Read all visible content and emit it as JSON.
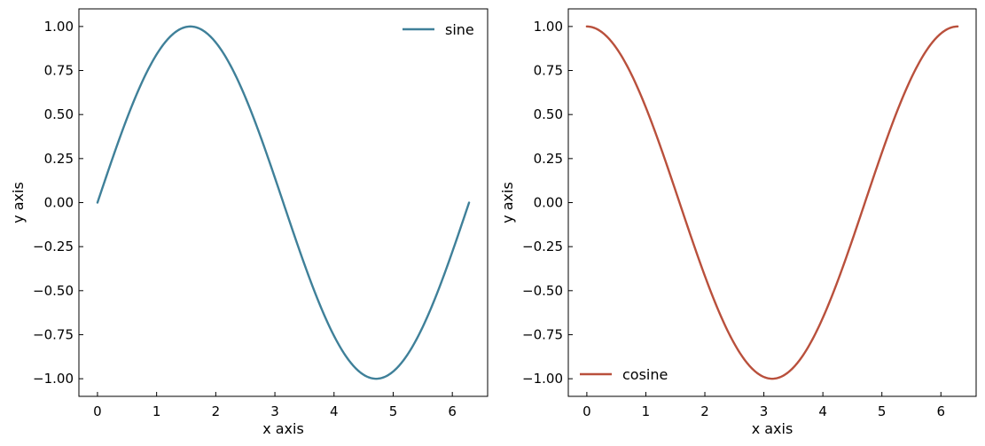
{
  "chart_data": [
    {
      "type": "line",
      "xlabel": "x axis",
      "ylabel": "y axis",
      "xlim": [
        -0.314,
        6.597
      ],
      "ylim": [
        -1.1,
        1.1
      ],
      "xticks": [
        0,
        1,
        2,
        3,
        4,
        5,
        6
      ],
      "xtick_labels": [
        "0",
        "1",
        "2",
        "3",
        "4",
        "5",
        "6"
      ],
      "yticks": [
        1.0,
        0.75,
        0.5,
        0.25,
        0.0,
        -0.25,
        -0.5,
        -0.75,
        -1.0
      ],
      "ytick_labels": [
        "1.00",
        "0.75",
        "0.50",
        "0.25",
        "0.00",
        "−0.25",
        "−0.50",
        "−0.75",
        "−1.00"
      ],
      "grid": false,
      "legend_position": "upper right",
      "series": [
        {
          "name": "sine",
          "color": "#3f8099",
          "x": [
            0,
            0.3142,
            0.6283,
            0.9425,
            1.2566,
            1.5708,
            1.885,
            2.1991,
            2.5133,
            2.8274,
            3.1416,
            3.4558,
            3.7699,
            4.0841,
            4.3982,
            4.7124,
            5.0265,
            5.3407,
            5.6549,
            5.969,
            6.2832
          ],
          "y": [
            0,
            0.309,
            0.5878,
            0.809,
            0.9511,
            1,
            0.9511,
            0.809,
            0.5878,
            0.309,
            0,
            -0.309,
            -0.5878,
            -0.809,
            -0.9511,
            -1,
            -0.9511,
            -0.809,
            -0.5878,
            -0.309,
            0
          ]
        }
      ]
    },
    {
      "type": "line",
      "xlabel": "x axis",
      "ylabel": "y axis",
      "xlim": [
        -0.314,
        6.597
      ],
      "ylim": [
        -1.1,
        1.1
      ],
      "xticks": [
        0,
        1,
        2,
        3,
        4,
        5,
        6
      ],
      "xtick_labels": [
        "0",
        "1",
        "2",
        "3",
        "4",
        "5",
        "6"
      ],
      "yticks": [
        1.0,
        0.75,
        0.5,
        0.25,
        0.0,
        -0.25,
        -0.5,
        -0.75,
        -1.0
      ],
      "ytick_labels": [
        "1.00",
        "0.75",
        "0.50",
        "0.25",
        "0.00",
        "−0.25",
        "−0.50",
        "−0.75",
        "−1.00"
      ],
      "grid": false,
      "legend_position": "lower left",
      "series": [
        {
          "name": "cosine",
          "color": "#b9503c",
          "x": [
            0,
            0.3142,
            0.6283,
            0.9425,
            1.2566,
            1.5708,
            1.885,
            2.1991,
            2.5133,
            2.8274,
            3.1416,
            3.4558,
            3.7699,
            4.0841,
            4.3982,
            4.7124,
            5.0265,
            5.3407,
            5.6549,
            5.969,
            6.2832
          ],
          "y": [
            1,
            0.9511,
            0.809,
            0.5878,
            0.309,
            0,
            -0.309,
            -0.5878,
            -0.809,
            -0.9511,
            -1,
            -0.9511,
            -0.809,
            -0.5878,
            -0.309,
            0,
            0.309,
            0.5878,
            0.809,
            0.9511,
            1
          ]
        }
      ]
    }
  ]
}
